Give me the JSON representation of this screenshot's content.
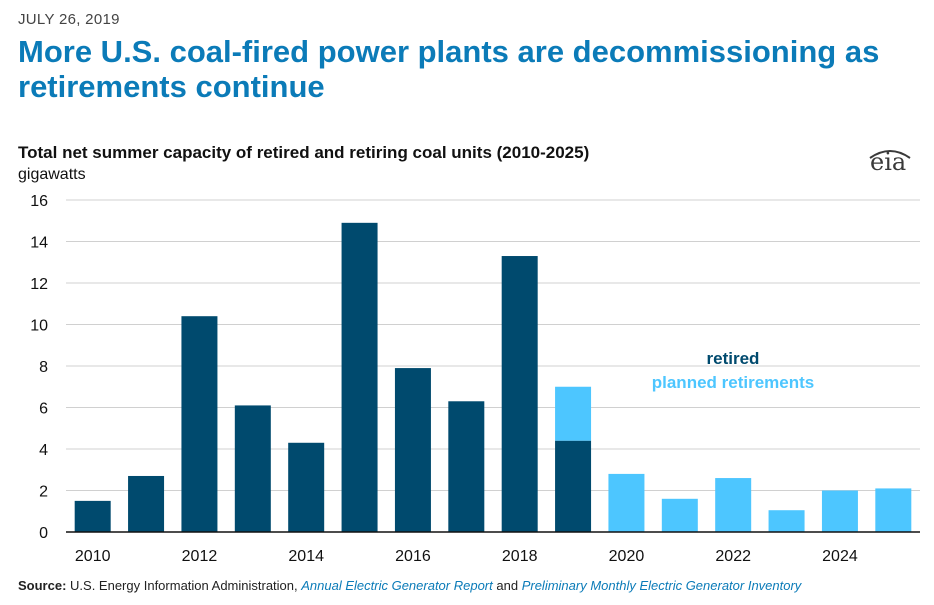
{
  "date": "JULY 26, 2019",
  "headline": "More U.S. coal-fired power plants are decommissioning as retirements continue",
  "logo_text": "eia",
  "source": {
    "label": "Source:",
    "text1": "U.S. Energy Information Administration,",
    "link1": "Annual Electric Generator Report",
    "text2": "and",
    "link2": "Preliminary Monthly Electric Generator Inventory"
  },
  "colors": {
    "retired": "#004a6e",
    "planned": "#4dc6ff",
    "headline": "#0b7bb8"
  },
  "chart_data": {
    "type": "bar",
    "stacked": true,
    "title": "Total net summer capacity of retired and retiring coal units (2010-2025)",
    "ylabel": "gigawatts",
    "xlabel": "",
    "ylim": [
      0,
      16
    ],
    "yticks": [
      0,
      2,
      4,
      6,
      8,
      10,
      12,
      14,
      16
    ],
    "xtick_labels": [
      "2010",
      "2012",
      "2014",
      "2016",
      "2018",
      "2020",
      "2022",
      "2024"
    ],
    "categories": [
      "2010",
      "2011",
      "2012",
      "2013",
      "2014",
      "2015",
      "2016",
      "2017",
      "2018",
      "2019",
      "2020",
      "2021",
      "2022",
      "2023",
      "2024",
      "2025"
    ],
    "series": [
      {
        "name": "retired",
        "color": "#004a6e",
        "values": [
          1.5,
          2.7,
          10.4,
          6.1,
          4.3,
          14.9,
          7.9,
          6.3,
          13.3,
          4.4,
          0,
          0,
          0,
          0,
          0,
          0
        ]
      },
      {
        "name": "planned retirements",
        "color": "#4dc6ff",
        "values": [
          0,
          0,
          0,
          0,
          0,
          0,
          0,
          0,
          0,
          2.6,
          2.8,
          1.6,
          2.6,
          1.05,
          2.0,
          2.1
        ]
      }
    ],
    "grid": true,
    "legend": "right"
  }
}
